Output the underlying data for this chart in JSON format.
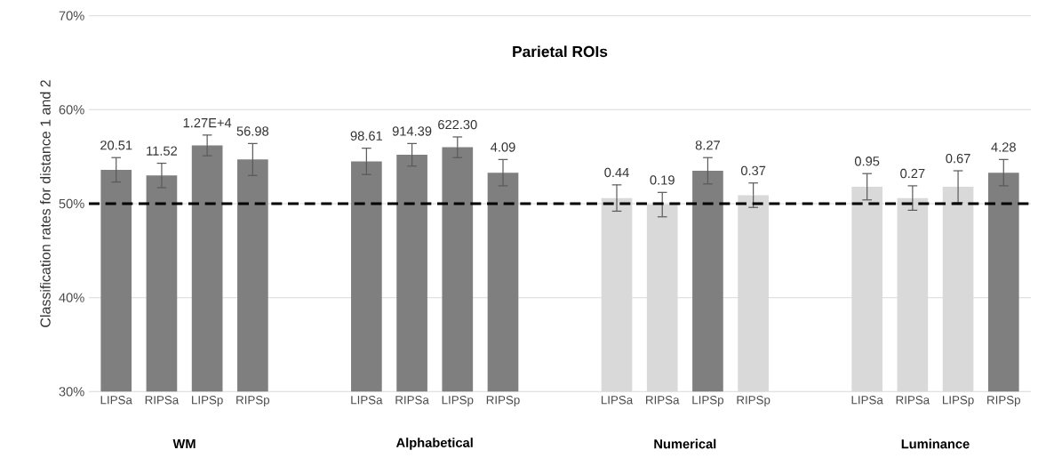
{
  "chart_data": {
    "type": "bar",
    "title": "Parietal ROIs",
    "ylabel": "Classification rates for distance 1 and 2",
    "categories": [
      "LIPSa",
      "RIPSa",
      "LIPSp",
      "RIPSp",
      "LIPSa",
      "RIPSa",
      "LIPSp",
      "RIPSp",
      "LIPSa",
      "RIPSa",
      "LIPSp",
      "RIPSp",
      "LIPSa",
      "RIPSa",
      "LIPSp",
      "RIPSp"
    ],
    "values": [
      53.6,
      53.0,
      56.2,
      54.7,
      54.5,
      55.2,
      56.0,
      53.3,
      50.6,
      49.9,
      53.5,
      50.9,
      51.8,
      50.6,
      51.8,
      53.3
    ],
    "errors": [
      1.3,
      1.3,
      1.1,
      1.7,
      1.4,
      1.2,
      1.1,
      1.4,
      1.4,
      1.3,
      1.4,
      1.3,
      1.4,
      1.3,
      1.7,
      1.4
    ],
    "colors": [
      "#7f7f7f",
      "#7f7f7f",
      "#7f7f7f",
      "#7f7f7f",
      "#7f7f7f",
      "#7f7f7f",
      "#7f7f7f",
      "#7f7f7f",
      "#d9d9d9",
      "#d9d9d9",
      "#7f7f7f",
      "#d9d9d9",
      "#d9d9d9",
      "#d9d9d9",
      "#d9d9d9",
      "#7f7f7f"
    ],
    "annotations": [
      "WM",
      "Alphabetical",
      "Numerical",
      "Luminance",
      "20.51",
      "11.52",
      "1.27E+4",
      "56.98",
      "98.61",
      "914.39",
      "622.30",
      "4.09",
      "0.44",
      "0.19",
      "8.27",
      "0.37",
      "0.95",
      "0.27",
      "0.67",
      "4.28"
    ],
    "ylim": [
      30,
      70
    ],
    "yticks": [
      {
        "value": 30,
        "label": "30%"
      },
      {
        "value": 40,
        "label": "40%"
      },
      {
        "value": 50,
        "label": "50%"
      },
      {
        "value": 60,
        "label": "60%"
      },
      {
        "value": 70,
        "label": "70%"
      }
    ],
    "grid": "y",
    "ref_lines": [
      {
        "axis": "y",
        "value": 50,
        "color": "#000000",
        "line_style": "dashed"
      }
    ]
  }
}
